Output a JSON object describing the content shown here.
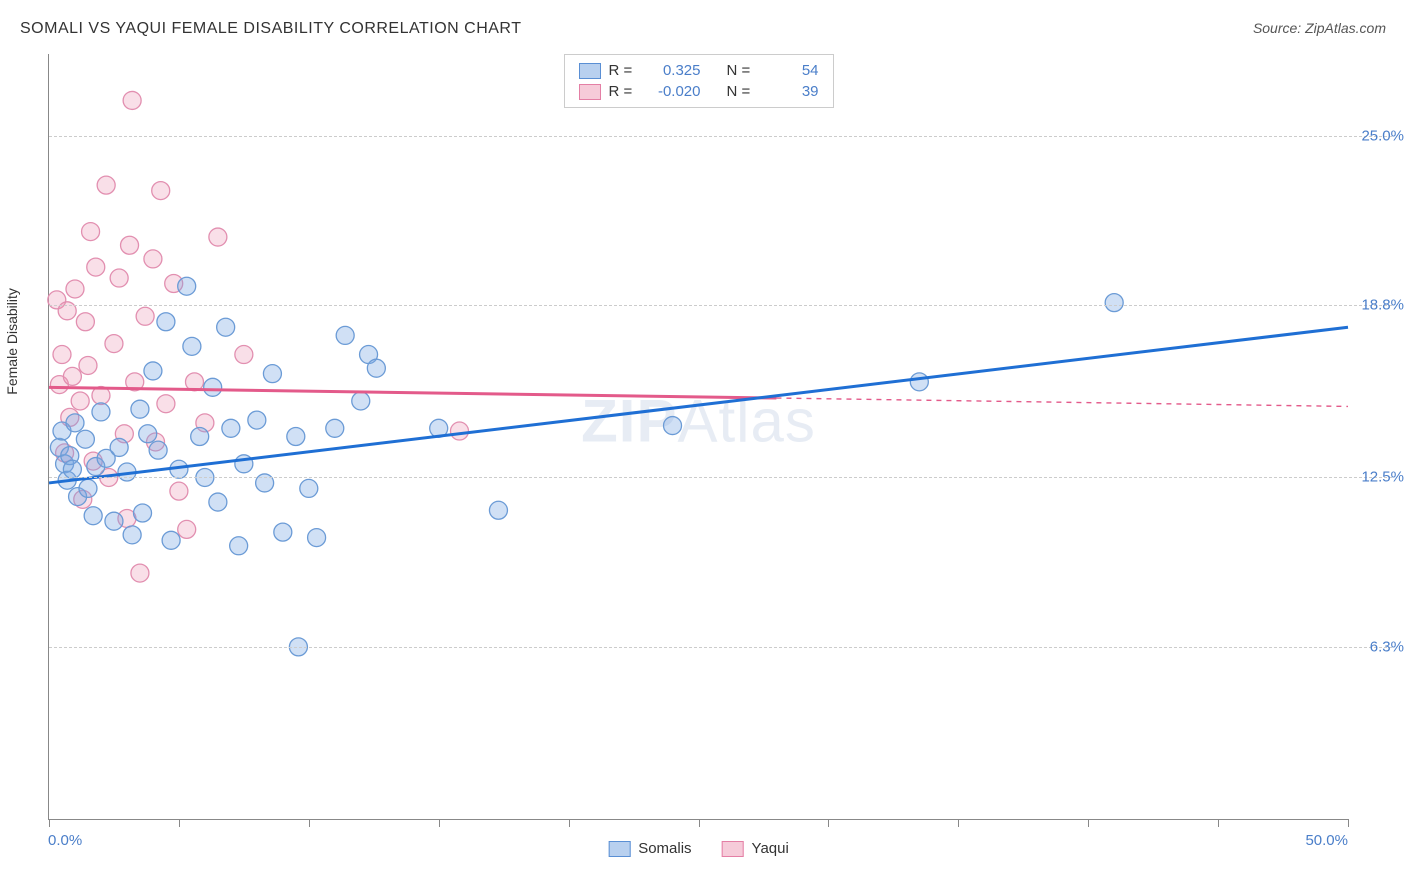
{
  "title": "SOMALI VS YAQUI FEMALE DISABILITY CORRELATION CHART",
  "source": "Source: ZipAtlas.com",
  "watermark_a": "ZIP",
  "watermark_b": "Atlas",
  "ylabel": "Female Disability",
  "chart": {
    "type": "scatter",
    "xlim": [
      0,
      50
    ],
    "ylim": [
      0,
      28
    ],
    "xaxis_min_label": "0.0%",
    "xaxis_max_label": "50.0%",
    "xtick_positions": [
      0,
      5,
      10,
      15,
      20,
      25,
      30,
      35,
      40,
      45,
      50
    ],
    "yticks": [
      {
        "v": 6.3,
        "label": "6.3%"
      },
      {
        "v": 12.5,
        "label": "12.5%"
      },
      {
        "v": 18.8,
        "label": "18.8%"
      },
      {
        "v": 25.0,
        "label": "25.0%"
      }
    ],
    "grid_color": "#cccccc",
    "background_color": "#ffffff",
    "marker_radius": 9,
    "marker_stroke_width": 1.3,
    "line_width": 3,
    "series_a": {
      "name": "Somalis",
      "fill": "rgba(120,165,225,0.35)",
      "stroke": "#6b9bd6",
      "swatch_fill": "#b8d0ef",
      "swatch_stroke": "#5a8fd4",
      "line_color": "#1f6fd4",
      "trend": {
        "x1": 0,
        "y1": 12.3,
        "x2": 50,
        "y2": 18.0
      },
      "r_value": "0.325",
      "n_value": "54",
      "points": [
        [
          0.4,
          13.6
        ],
        [
          0.5,
          14.2
        ],
        [
          0.6,
          13.0
        ],
        [
          0.7,
          12.4
        ],
        [
          0.8,
          13.3
        ],
        [
          0.9,
          12.8
        ],
        [
          1.0,
          14.5
        ],
        [
          1.1,
          11.8
        ],
        [
          1.4,
          13.9
        ],
        [
          1.5,
          12.1
        ],
        [
          1.7,
          11.1
        ],
        [
          1.8,
          12.9
        ],
        [
          2.0,
          14.9
        ],
        [
          2.2,
          13.2
        ],
        [
          2.5,
          10.9
        ],
        [
          2.7,
          13.6
        ],
        [
          3.0,
          12.7
        ],
        [
          3.2,
          10.4
        ],
        [
          3.5,
          15.0
        ],
        [
          3.6,
          11.2
        ],
        [
          3.8,
          14.1
        ],
        [
          4.0,
          16.4
        ],
        [
          4.2,
          13.5
        ],
        [
          4.5,
          18.2
        ],
        [
          4.7,
          10.2
        ],
        [
          5.0,
          12.8
        ],
        [
          5.3,
          19.5
        ],
        [
          5.5,
          17.3
        ],
        [
          5.8,
          14.0
        ],
        [
          6.0,
          12.5
        ],
        [
          6.3,
          15.8
        ],
        [
          6.5,
          11.6
        ],
        [
          6.8,
          18.0
        ],
        [
          7.0,
          14.3
        ],
        [
          7.3,
          10.0
        ],
        [
          7.5,
          13.0
        ],
        [
          8.0,
          14.6
        ],
        [
          8.3,
          12.3
        ],
        [
          8.6,
          16.3
        ],
        [
          9.0,
          10.5
        ],
        [
          9.5,
          14.0
        ],
        [
          9.6,
          6.3
        ],
        [
          10.0,
          12.1
        ],
        [
          10.3,
          10.3
        ],
        [
          11.0,
          14.3
        ],
        [
          11.4,
          17.7
        ],
        [
          12.0,
          15.3
        ],
        [
          12.3,
          17.0
        ],
        [
          12.6,
          16.5
        ],
        [
          15.0,
          14.3
        ],
        [
          17.3,
          11.3
        ],
        [
          24.0,
          14.4
        ],
        [
          33.5,
          16.0
        ],
        [
          41.0,
          18.9
        ]
      ]
    },
    "series_b": {
      "name": "Yaqui",
      "fill": "rgba(235,150,180,0.30)",
      "stroke": "#e28fb0",
      "swatch_fill": "#f6cbd9",
      "swatch_stroke": "#e47fa5",
      "line_color": "#e35a8a",
      "trend": {
        "x1": 0,
        "y1": 15.8,
        "x2": 50,
        "y2": 15.1
      },
      "trend_solid_until_x": 28,
      "r_value": "-0.020",
      "n_value": "39",
      "points": [
        [
          0.3,
          19.0
        ],
        [
          0.4,
          15.9
        ],
        [
          0.5,
          17.0
        ],
        [
          0.6,
          13.4
        ],
        [
          0.7,
          18.6
        ],
        [
          0.8,
          14.7
        ],
        [
          0.9,
          16.2
        ],
        [
          1.0,
          19.4
        ],
        [
          1.2,
          15.3
        ],
        [
          1.3,
          11.7
        ],
        [
          1.4,
          18.2
        ],
        [
          1.5,
          16.6
        ],
        [
          1.6,
          21.5
        ],
        [
          1.7,
          13.1
        ],
        [
          1.8,
          20.2
        ],
        [
          2.0,
          15.5
        ],
        [
          2.2,
          23.2
        ],
        [
          2.3,
          12.5
        ],
        [
          2.5,
          17.4
        ],
        [
          2.7,
          19.8
        ],
        [
          2.9,
          14.1
        ],
        [
          3.0,
          11.0
        ],
        [
          3.1,
          21.0
        ],
        [
          3.2,
          26.3
        ],
        [
          3.3,
          16.0
        ],
        [
          3.5,
          9.0
        ],
        [
          3.7,
          18.4
        ],
        [
          4.0,
          20.5
        ],
        [
          4.1,
          13.8
        ],
        [
          4.3,
          23.0
        ],
        [
          4.5,
          15.2
        ],
        [
          4.8,
          19.6
        ],
        [
          5.0,
          12.0
        ],
        [
          5.3,
          10.6
        ],
        [
          5.6,
          16.0
        ],
        [
          6.0,
          14.5
        ],
        [
          6.5,
          21.3
        ],
        [
          7.5,
          17.0
        ],
        [
          15.8,
          14.2
        ]
      ]
    }
  },
  "legend_top": {
    "r_label": "R =",
    "n_label": "N ="
  },
  "colors": {
    "axis_text": "#4a7ec9",
    "title_text": "#333333"
  }
}
